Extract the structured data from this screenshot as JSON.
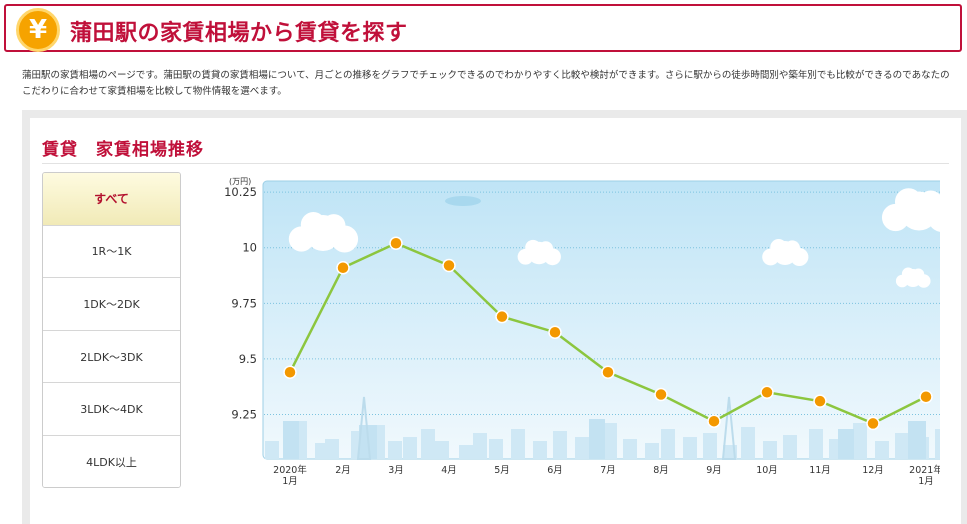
{
  "header": {
    "title_main": "蒲田駅の家賃相場から賃貸を探す",
    "badge_symbol": "¥"
  },
  "intro_text": "蒲田駅の家賃相場のページです。蒲田駅の賃貸の家賃相場について、月ごとの推移をグラフでチェックできるのでわかりやすく比較や検討ができます。さらに駅からの徒歩時間別や築年別でも比較ができるのであなたのこだわりに合わせて家賃相場を比較して物件情報を選べます。",
  "panel": {
    "title": "賃貸　家賃相場推移"
  },
  "tabs": [
    {
      "label": "すべて",
      "active": true
    },
    {
      "label": "1R〜1K",
      "active": false
    },
    {
      "label": "1DK〜2DK",
      "active": false
    },
    {
      "label": "2LDK〜3DK",
      "active": false
    },
    {
      "label": "3LDK〜4DK",
      "active": false
    },
    {
      "label": "4LDK以上",
      "active": false
    }
  ],
  "colors": {
    "accent": "#c0103a",
    "line": "#8cc63f",
    "marker": "#f39800",
    "sky_top": "#bfe4f6",
    "sky_bottom": "#f1f9fd"
  },
  "chart_data": {
    "type": "line",
    "ylabel": "(万円)",
    "ylim": [
      9.05,
      10.3
    ],
    "yticks": [
      9.25,
      9.5,
      9.75,
      10,
      10.25
    ],
    "ytick_labels": [
      "9.25",
      "9.5",
      "9.75",
      "10",
      "10.25"
    ],
    "categories": [
      [
        "2020年",
        "1月"
      ],
      [
        "2月"
      ],
      [
        "3月"
      ],
      [
        "4月"
      ],
      [
        "5月"
      ],
      [
        "6月"
      ],
      [
        "7月"
      ],
      [
        "8月"
      ],
      [
        "9月"
      ],
      [
        "10月"
      ],
      [
        "11月"
      ],
      [
        "12月"
      ],
      [
        "2021年",
        "1月"
      ]
    ],
    "series": [
      {
        "values": [
          9.44,
          9.91,
          10.02,
          9.92,
          9.69,
          9.62,
          9.44,
          9.34,
          9.22,
          9.35,
          9.31,
          9.21,
          9.33
        ]
      }
    ]
  }
}
